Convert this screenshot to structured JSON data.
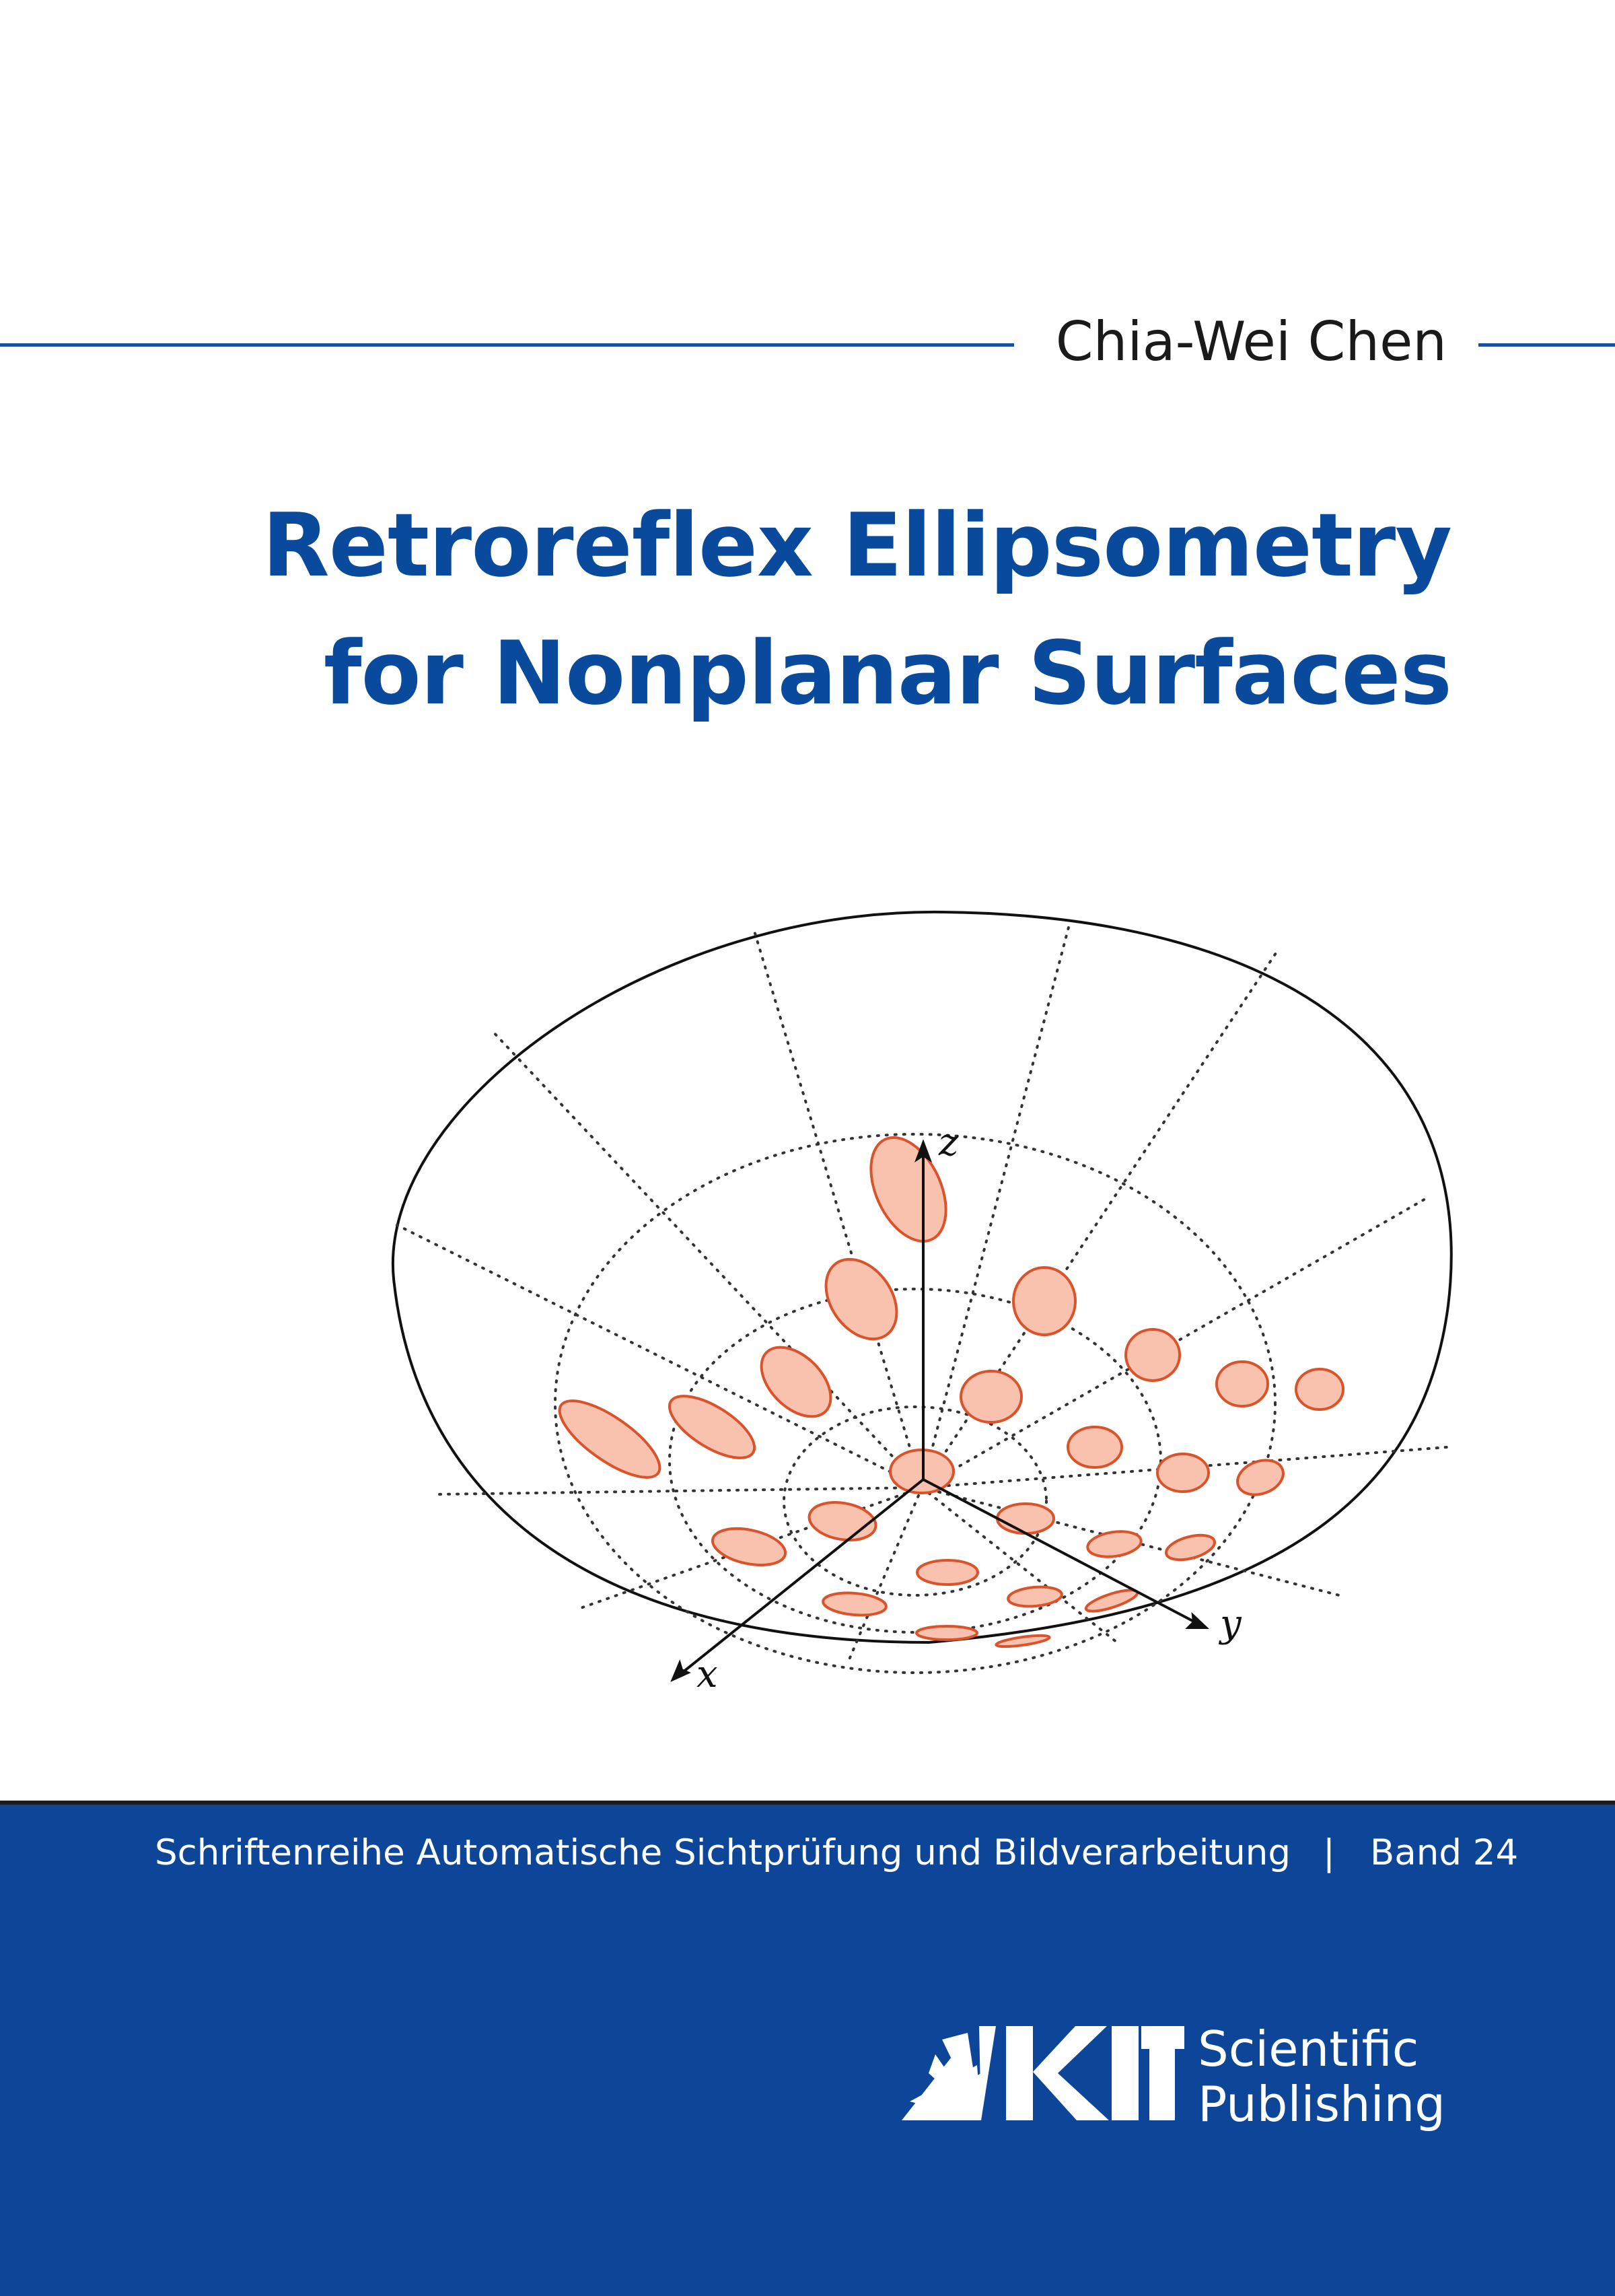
{
  "author": "Chia-Wei Chen",
  "title": {
    "line1": "Retroreflex Ellipsometry",
    "line2": "for Nonplanar Surfaces"
  },
  "figure": {
    "axes": {
      "x": "x",
      "y": "y",
      "z": "z"
    },
    "colors": {
      "ellipse_fill": "#f9c2ae",
      "ellipse_stroke": "#d9532b",
      "outline": "#111111"
    }
  },
  "series": {
    "name": "Schriftenreihe Automatische Sichtprüfung und Bildverarbeitung",
    "separator": "|",
    "volume": "Band 24"
  },
  "publisher": {
    "line1": "Scientific",
    "line2": "Publishing",
    "logo_icon": "kit-logo-icon"
  },
  "colors": {
    "title": "#0a4a9c",
    "band": "#0d4699",
    "rule": "#1a4f9c"
  }
}
